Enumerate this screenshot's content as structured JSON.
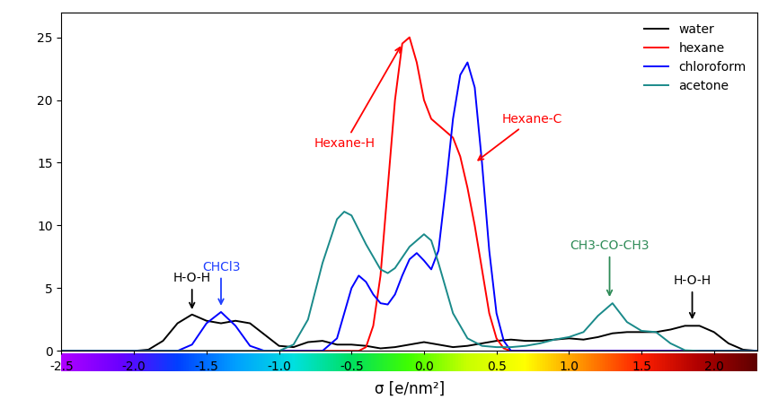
{
  "chart_data": {
    "type": "line",
    "x_label": "σ [e/nm²]",
    "xlim": [
      -2.5,
      2.3
    ],
    "xticks": [
      -2.5,
      -2.0,
      -1.5,
      -1.0,
      -0.5,
      0.0,
      0.5,
      1.0,
      1.5,
      2.0
    ],
    "ylim": [
      0,
      27
    ],
    "yticks": [
      0,
      5,
      10,
      15,
      20,
      25
    ],
    "legend": "upper right",
    "series": [
      {
        "name": "water",
        "color": "#000000",
        "x": [
          -2.5,
          -2.4,
          -2.3,
          -2.2,
          -2.1,
          -2.0,
          -1.9,
          -1.8,
          -1.7,
          -1.6,
          -1.5,
          -1.4,
          -1.3,
          -1.2,
          -1.1,
          -1.0,
          -0.9,
          -0.8,
          -0.7,
          -0.6,
          -0.5,
          -0.4,
          -0.3,
          -0.2,
          -0.1,
          0.0,
          0.1,
          0.2,
          0.3,
          0.4,
          0.5,
          0.6,
          0.7,
          0.8,
          0.9,
          1.0,
          1.1,
          1.2,
          1.3,
          1.4,
          1.5,
          1.6,
          1.7,
          1.8,
          1.9,
          2.0,
          2.1,
          2.2,
          2.3
        ],
        "values": [
          0,
          0,
          0,
          0,
          0,
          0,
          0.1,
          0.8,
          2.2,
          2.9,
          2.4,
          2.2,
          2.4,
          2.2,
          1.3,
          0.4,
          0.3,
          0.7,
          0.8,
          0.5,
          0.5,
          0.4,
          0.2,
          0.3,
          0.5,
          0.7,
          0.5,
          0.3,
          0.4,
          0.6,
          0.8,
          0.9,
          0.8,
          0.8,
          0.9,
          1.0,
          0.9,
          1.1,
          1.4,
          1.5,
          1.5,
          1.5,
          1.7,
          2.0,
          2.0,
          1.5,
          0.6,
          0.1,
          0
        ]
      },
      {
        "name": "hexane",
        "color": "#ff0000",
        "x": [
          -2.5,
          -0.45,
          -0.4,
          -0.35,
          -0.3,
          -0.25,
          -0.2,
          -0.15,
          -0.1,
          -0.05,
          0.0,
          0.05,
          0.1,
          0.15,
          0.2,
          0.25,
          0.3,
          0.35,
          0.4,
          0.45,
          0.5,
          0.55,
          0.6,
          2.3
        ],
        "values": [
          0,
          0,
          0.3,
          2,
          6,
          13,
          20,
          24.5,
          25,
          23,
          20,
          18.5,
          18,
          17.5,
          17,
          15.5,
          13,
          10,
          6.5,
          3,
          1,
          0.2,
          0,
          0
        ]
      },
      {
        "name": "chloroform",
        "color": "#0000ff",
        "x": [
          -2.5,
          -1.7,
          -1.6,
          -1.5,
          -1.4,
          -1.3,
          -1.2,
          -1.1,
          -0.7,
          -0.6,
          -0.55,
          -0.5,
          -0.45,
          -0.4,
          -0.35,
          -0.3,
          -0.25,
          -0.2,
          -0.15,
          -0.1,
          -0.05,
          0.0,
          0.05,
          0.1,
          0.15,
          0.2,
          0.25,
          0.3,
          0.35,
          0.4,
          0.45,
          0.5,
          0.55,
          0.6,
          2.3
        ],
        "values": [
          0,
          0,
          0.5,
          2.2,
          3.1,
          2.0,
          0.4,
          0,
          0,
          1.0,
          3,
          5,
          6,
          5.5,
          4.5,
          3.8,
          3.7,
          4.5,
          6,
          7.3,
          7.8,
          7.2,
          6.5,
          8,
          13,
          18.5,
          22,
          23,
          21,
          15,
          8,
          3,
          0.8,
          0,
          0
        ]
      },
      {
        "name": "acetone",
        "color": "#1a8a8a",
        "x": [
          -2.5,
          -1.0,
          -0.9,
          -0.8,
          -0.7,
          -0.6,
          -0.55,
          -0.5,
          -0.4,
          -0.3,
          -0.25,
          -0.2,
          -0.1,
          0.0,
          0.05,
          0.1,
          0.2,
          0.3,
          0.4,
          0.5,
          0.6,
          0.7,
          0.8,
          0.9,
          1.0,
          1.1,
          1.2,
          1.3,
          1.4,
          1.5,
          1.6,
          1.7,
          1.8,
          1.9,
          2.3
        ],
        "values": [
          0,
          0,
          0.5,
          2.5,
          7,
          10.5,
          11.1,
          10.8,
          8.5,
          6.5,
          6.2,
          6.6,
          8.3,
          9.3,
          8.8,
          7,
          3,
          1,
          0.4,
          0.3,
          0.3,
          0.4,
          0.6,
          0.9,
          1.1,
          1.5,
          2.8,
          3.8,
          2.3,
          1.6,
          1.5,
          0.6,
          0.05,
          0,
          0
        ]
      }
    ],
    "annotations": [
      {
        "text": "H-O-H",
        "x": -1.6,
        "y": 3.1,
        "color": "#000000"
      },
      {
        "text": "CHCl3",
        "x": -1.4,
        "y": 3.4,
        "color": "#1f3fff"
      },
      {
        "text": "Hexane-H",
        "x": -0.15,
        "y": 24.5,
        "color": "#ff0000"
      },
      {
        "text": "Hexane-C",
        "x": 0.35,
        "y": 15,
        "color": "#ff0000"
      },
      {
        "text": "CH3-CO-CH3",
        "x": 1.28,
        "y": 4.1,
        "color": "#2e8b57"
      },
      {
        "text": "H-O-H",
        "x": 1.85,
        "y": 2.3,
        "color": "#000000"
      }
    ]
  }
}
